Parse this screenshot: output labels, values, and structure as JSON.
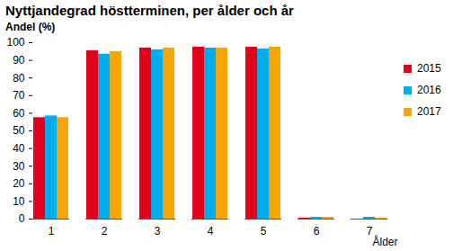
{
  "chart_data": {
    "type": "bar",
    "title": "Nyttjandegrad höstterminen, per ålder och år",
    "y_label": "Andel (%)",
    "x_label": "Ålder",
    "categories": [
      "1",
      "2",
      "3",
      "4",
      "5",
      "6",
      "7"
    ],
    "series": [
      {
        "name": "2015",
        "color": "#e2001a",
        "values": [
          57.5,
          95.5,
          97,
          97.5,
          97.5,
          0.5,
          0
        ]
      },
      {
        "name": "2016",
        "color": "#00aeef",
        "values": [
          58.5,
          93.5,
          96,
          97,
          96.5,
          1,
          1
        ]
      },
      {
        "name": "2017",
        "color": "#f7a600",
        "values": [
          57.5,
          95,
          97,
          97,
          97.5,
          1,
          0.5
        ]
      }
    ],
    "ylim": [
      0,
      100
    ],
    "yticks": [
      0,
      10,
      20,
      30,
      40,
      50,
      60,
      70,
      80,
      90,
      100
    ],
    "grid": false,
    "legend": "right"
  }
}
